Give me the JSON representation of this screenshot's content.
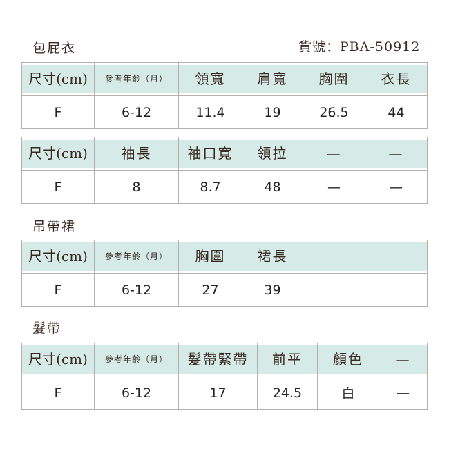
{
  "sections": [
    {
      "title": "包屁衣",
      "item_no": "貨號：PBA-50912",
      "tables": [
        {
          "headers": [
            "尺寸(cm)",
            "參考年齡（月）",
            "領寬",
            "肩寬",
            "胸圍",
            "衣長"
          ],
          "row": [
            "F",
            "6-12",
            "11.4",
            "19",
            "26.5",
            "44"
          ]
        },
        {
          "headers": [
            "尺寸(cm)",
            "袖長",
            "袖口寬",
            "領拉",
            "—",
            "—"
          ],
          "row": [
            "F",
            "8",
            "8.7",
            "48",
            "—",
            "—"
          ]
        }
      ]
    },
    {
      "title": "吊帶裙",
      "tables": [
        {
          "headers": [
            "尺寸(cm)",
            "參考年齡（月）",
            "胸圍",
            "裙長",
            "",
            ""
          ],
          "row": [
            "F",
            "6-12",
            "27",
            "39",
            "",
            ""
          ]
        }
      ]
    },
    {
      "title": "髮帶",
      "tables": [
        {
          "headers": [
            "尺寸(cm)",
            "參考年齡（月）",
            "髮帶緊帶",
            "前平",
            "顏色",
            "—"
          ],
          "row": [
            "F",
            "6-12",
            "17",
            "24.5",
            "白",
            "—"
          ]
        }
      ]
    }
  ],
  "colors": {
    "header_bg": "#d6ebe7",
    "text": "#3b2a22"
  }
}
